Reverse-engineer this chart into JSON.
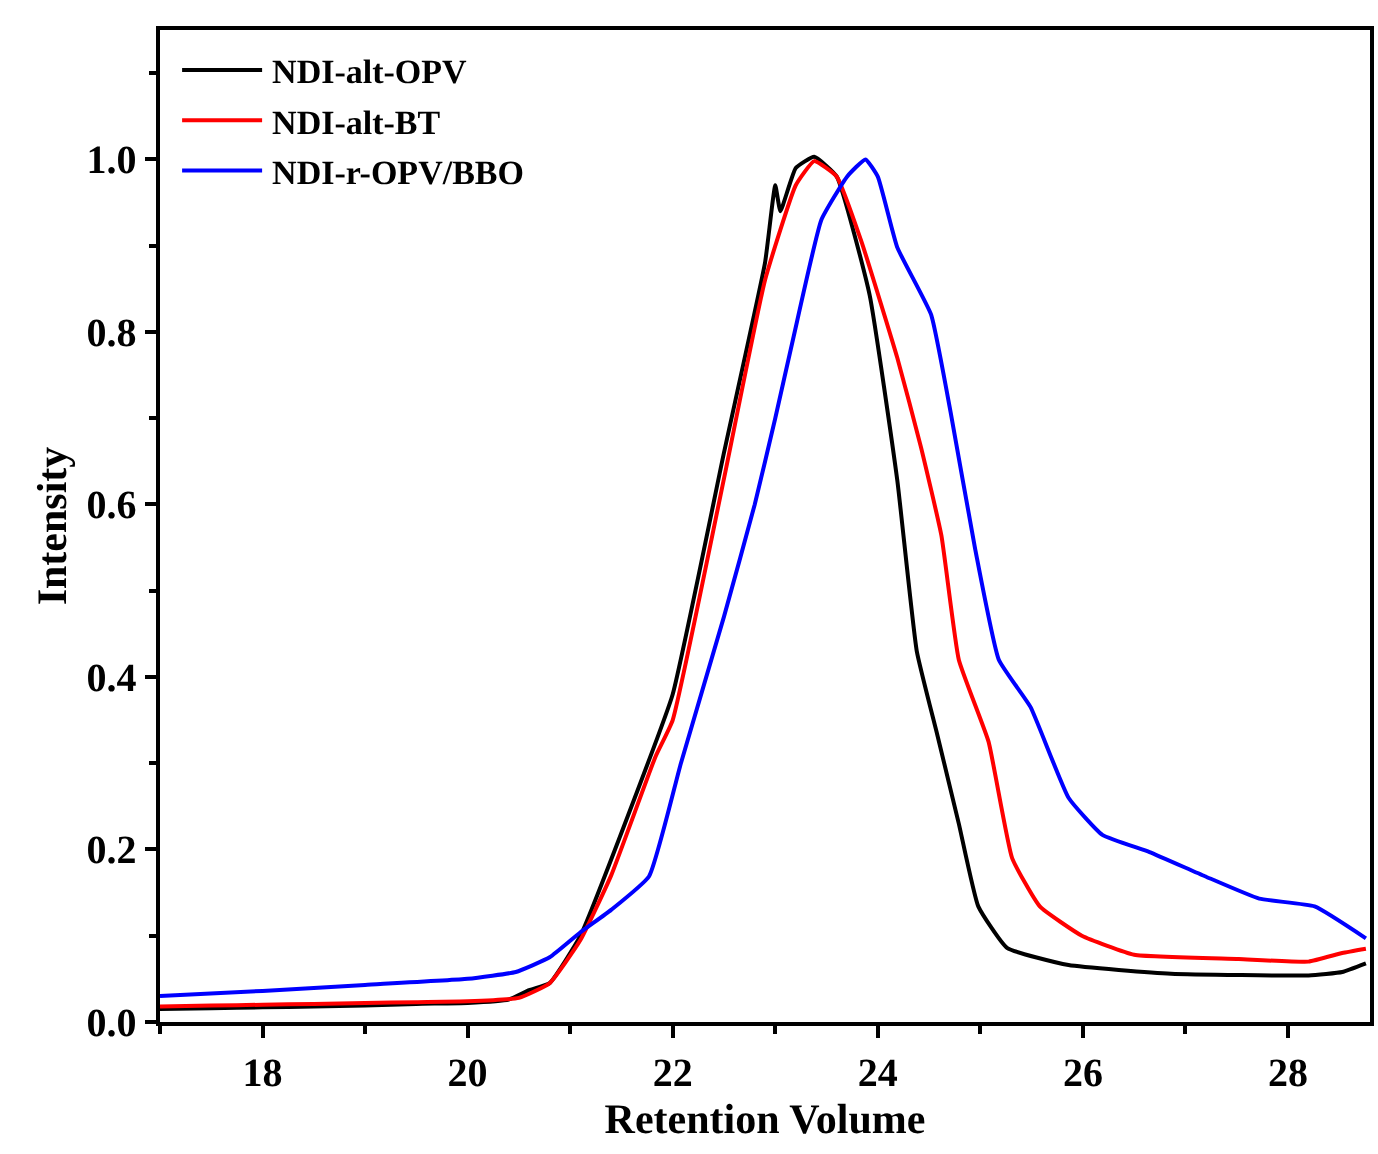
{
  "chart_data": {
    "type": "line",
    "xlabel": "Retention Volume",
    "ylabel": "Intensity",
    "xlim": [
      17,
      28.8
    ],
    "ylim": [
      0,
      1.15
    ],
    "xticks": [
      18,
      20,
      22,
      24,
      26,
      28
    ],
    "yticks": [
      {
        "value": 0,
        "label": "0.0"
      },
      0.2,
      0.4,
      0.6,
      0.8,
      {
        "value": 1,
        "label": "1.0"
      }
    ],
    "legend": "top left",
    "marker": "none",
    "line_style": "solid",
    "series": [
      {
        "name": "NDI-alt-OPV",
        "color": "#000000",
        "x": [
          17.0,
          17.5,
          18.0,
          18.5,
          19.0,
          19.5,
          20.0,
          20.4,
          20.6,
          20.8,
          21.1,
          21.63,
          22.0,
          22.5,
          22.9,
          23.0,
          23.05,
          23.2,
          23.38,
          23.6,
          23.92,
          24.19,
          24.38,
          24.58,
          24.79,
          24.98,
          25.26,
          25.86,
          26.86,
          28.2,
          28.53,
          28.76
        ],
        "values": [
          0.015,
          0.016,
          0.017,
          0.018,
          0.019,
          0.021,
          0.022,
          0.026,
          0.037,
          0.045,
          0.1,
          0.26,
          0.38,
          0.66,
          0.88,
          0.97,
          0.94,
          0.99,
          1.003,
          0.98,
          0.843,
          0.628,
          0.43,
          0.333,
          0.23,
          0.134,
          0.086,
          0.066,
          0.056,
          0.054,
          0.058,
          0.068
        ]
      },
      {
        "name": "NDI-alt-BT",
        "color": "#ff0000",
        "x": [
          17.0,
          17.5,
          18.0,
          18.5,
          19.0,
          19.5,
          20.0,
          20.5,
          20.8,
          21.1,
          21.4,
          21.83,
          22.0,
          22.5,
          22.9,
          23.2,
          23.38,
          23.6,
          23.84,
          24.19,
          24.42,
          24.62,
          24.79,
          25.08,
          25.31,
          25.58,
          25.99,
          26.5,
          27.52,
          28.2,
          28.53,
          28.76
        ],
        "values": [
          0.018,
          0.019,
          0.02,
          0.021,
          0.022,
          0.023,
          0.024,
          0.028,
          0.045,
          0.095,
          0.17,
          0.307,
          0.35,
          0.63,
          0.86,
          0.97,
          0.998,
          0.98,
          0.905,
          0.77,
          0.667,
          0.564,
          0.42,
          0.325,
          0.19,
          0.134,
          0.1,
          0.078,
          0.073,
          0.07,
          0.08,
          0.085
        ]
      },
      {
        "name": "NDI-r-OPV/BBO",
        "color": "#0000ff",
        "x": [
          17.0,
          18.0,
          19.0,
          20.0,
          20.47,
          20.8,
          21.1,
          21.4,
          21.77,
          22.08,
          22.5,
          22.8,
          23.0,
          23.18,
          23.45,
          23.7,
          23.88,
          24.0,
          24.19,
          24.52,
          24.71,
          24.95,
          25.18,
          25.49,
          25.86,
          26.19,
          26.65,
          27.19,
          27.72,
          28.26,
          28.76
        ],
        "values": [
          0.03,
          0.036,
          0.043,
          0.05,
          0.058,
          0.075,
          0.104,
          0.13,
          0.169,
          0.3,
          0.47,
          0.6,
          0.7,
          0.795,
          0.93,
          0.98,
          1.0,
          0.98,
          0.898,
          0.82,
          0.707,
          0.548,
          0.42,
          0.365,
          0.26,
          0.217,
          0.197,
          0.169,
          0.143,
          0.134,
          0.097
        ]
      }
    ]
  }
}
